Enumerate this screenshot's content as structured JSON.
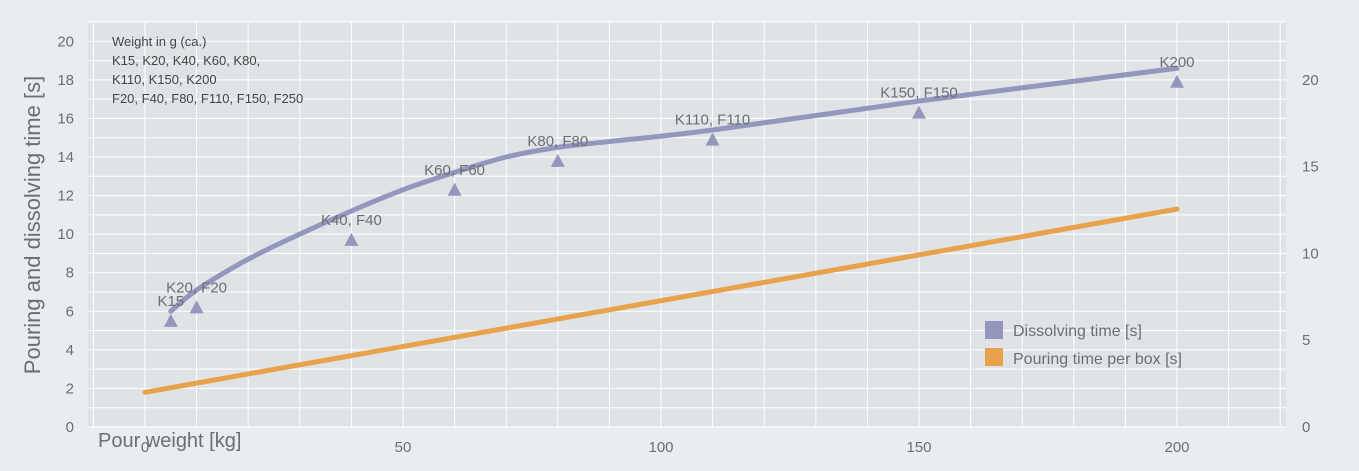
{
  "chart_data": {
    "type": "line",
    "ylabel": "Pouring and dissolving time [s]",
    "xlabel": "Pour weight [kg]",
    "xlim": [
      0,
      220
    ],
    "ylim_left": [
      0,
      21
    ],
    "ylim_right": [
      0,
      23.33
    ],
    "x_ticks": [
      0,
      50,
      100,
      150,
      200
    ],
    "y_left_ticks": [
      0,
      2,
      4,
      6,
      8,
      10,
      12,
      14,
      16,
      18,
      20
    ],
    "y_right_ticks": [
      0,
      5,
      10,
      15,
      20
    ],
    "grid": true,
    "legend_position": "bottom-right",
    "note_lines": [
      "Weight in g (ca.)",
      "K15, K20, K40, K60, K80,",
      "K110, K150, K200",
      "F20, F40, F80, F110, F150, F250"
    ],
    "series": [
      {
        "name": "Dissolving time [s]",
        "color": "#9396bd",
        "curve": [
          [
            5,
            6.0
          ],
          [
            10,
            7.1
          ],
          [
            20,
            8.7
          ],
          [
            30,
            10.0
          ],
          [
            40,
            11.2
          ],
          [
            50,
            12.3
          ],
          [
            60,
            13.2
          ],
          [
            70,
            14.0
          ],
          [
            80,
            14.5
          ],
          [
            90,
            14.8
          ],
          [
            110,
            15.4
          ],
          [
            150,
            16.9
          ],
          [
            200,
            18.6
          ]
        ],
        "points": [
          {
            "x": 5,
            "y": 5.5,
            "label": "K15"
          },
          {
            "x": 10,
            "y": 6.2,
            "label": "K20, F20"
          },
          {
            "x": 40,
            "y": 9.7,
            "label": "K40, F40"
          },
          {
            "x": 60,
            "y": 12.3,
            "label": "K60, F60"
          },
          {
            "x": 80,
            "y": 13.8,
            "label": "K80, F80"
          },
          {
            "x": 110,
            "y": 14.9,
            "label": "K110, F110"
          },
          {
            "x": 150,
            "y": 16.3,
            "label": "K150, F150"
          },
          {
            "x": 200,
            "y": 17.9,
            "label": "K200"
          }
        ]
      },
      {
        "name": "Pouring time per box [s]",
        "color": "#e8a24c",
        "curve": [
          [
            0,
            1.8
          ],
          [
            200,
            11.3
          ]
        ]
      }
    ]
  }
}
